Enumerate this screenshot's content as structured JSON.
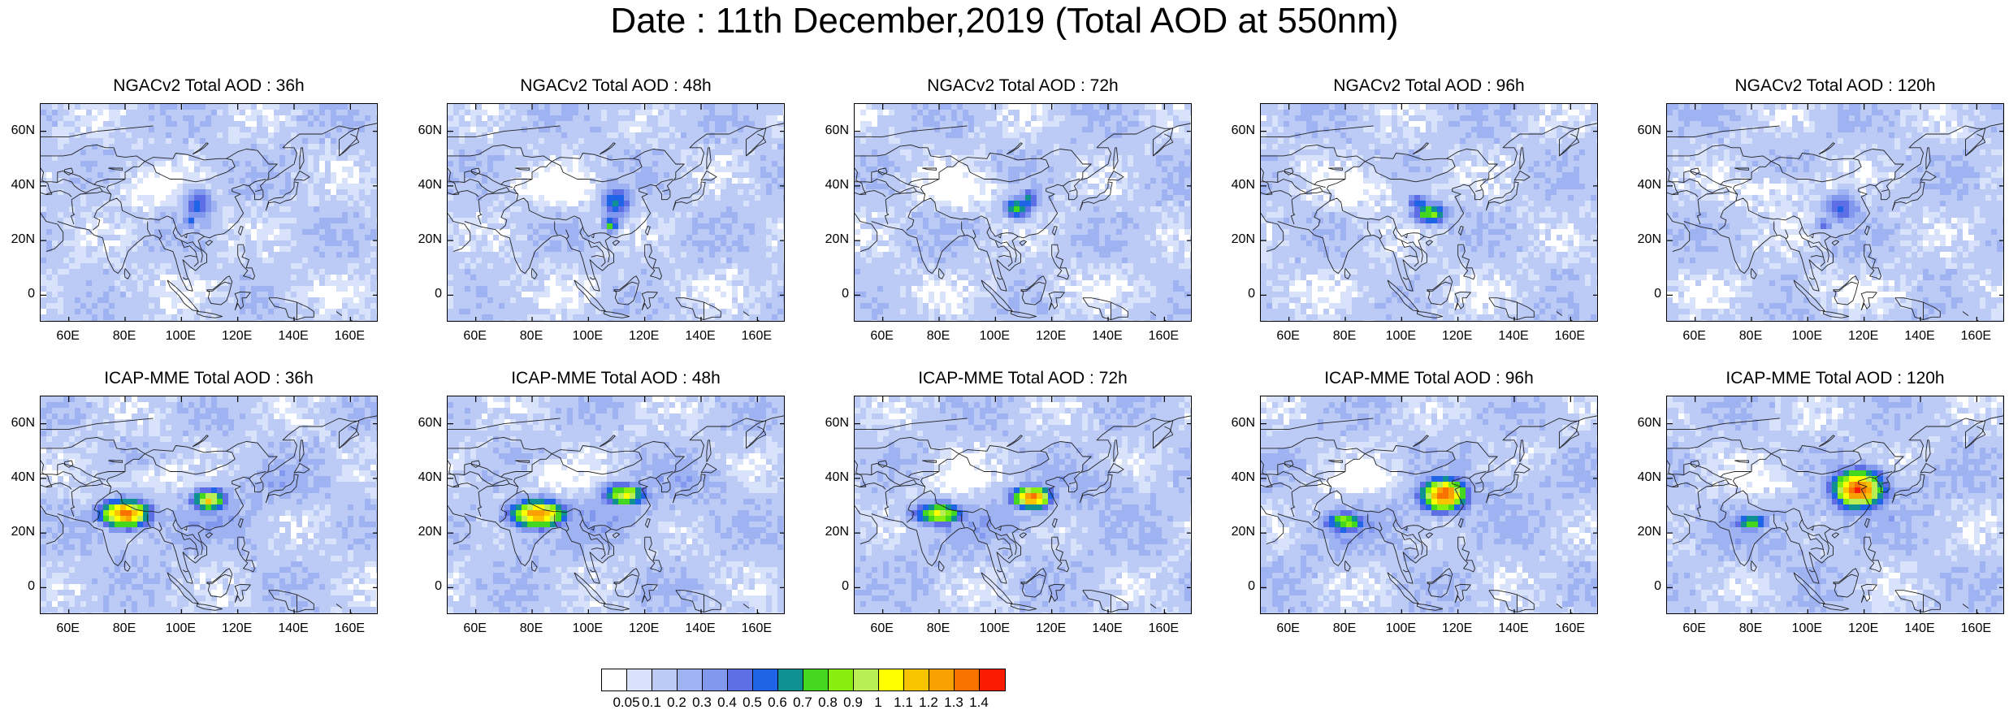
{
  "title": "Date : 11th December,2019 (Total AOD at 550nm)",
  "axis_ticks": {
    "x": [
      {
        "lon": 60,
        "label": "60E"
      },
      {
        "lon": 80,
        "label": "80E"
      },
      {
        "lon": 100,
        "label": "100E"
      },
      {
        "lon": 120,
        "label": "120E"
      },
      {
        "lon": 140,
        "label": "140E"
      },
      {
        "lon": 160,
        "label": "160E"
      }
    ],
    "y": [
      {
        "lat": 60,
        "label": "60N"
      },
      {
        "lat": 40,
        "label": "40N"
      },
      {
        "lat": 20,
        "label": "20N"
      },
      {
        "lat": 0,
        "label": "0"
      }
    ]
  },
  "map_extent": {
    "lon_min": 50,
    "lon_max": 170,
    "lat_min": -10,
    "lat_max": 70
  },
  "panels": [
    {
      "title": "NGACv2 Total AOD : 36h",
      "row": 0,
      "col": 0,
      "hotspots": [
        {
          "lon": 106,
          "lat": 33,
          "level": 0.55,
          "rx": 6,
          "ry": 6
        },
        {
          "lon": 103,
          "lat": 27,
          "level": 0.5,
          "rx": 3,
          "ry": 3
        }
      ]
    },
    {
      "title": "NGACv2 Total AOD : 48h",
      "row": 0,
      "col": 1,
      "hotspots": [
        {
          "lon": 110,
          "lat": 34,
          "level": 0.6,
          "rx": 6,
          "ry": 6
        },
        {
          "lon": 108,
          "lat": 26,
          "level": 0.75,
          "rx": 3,
          "ry": 3
        }
      ]
    },
    {
      "title": "NGACv2 Total AOD : 72h",
      "row": 0,
      "col": 2,
      "hotspots": [
        {
          "lon": 108,
          "lat": 32,
          "level": 0.75,
          "rx": 5,
          "ry": 4
        },
        {
          "lon": 112,
          "lat": 35,
          "level": 0.6,
          "rx": 4,
          "ry": 4
        }
      ]
    },
    {
      "title": "NGACv2 Total AOD : 96h",
      "row": 0,
      "col": 3,
      "hotspots": [
        {
          "lon": 110,
          "lat": 30,
          "level": 0.85,
          "rx": 6,
          "ry": 4
        },
        {
          "lon": 106,
          "lat": 34,
          "level": 0.6,
          "rx": 4,
          "ry": 3
        }
      ]
    },
    {
      "title": "NGACv2 Total AOD : 120h",
      "row": 0,
      "col": 4,
      "hotspots": [
        {
          "lon": 112,
          "lat": 32,
          "level": 0.5,
          "rx": 7,
          "ry": 6
        },
        {
          "lon": 106,
          "lat": 26,
          "level": 0.45,
          "rx": 3,
          "ry": 3
        }
      ]
    },
    {
      "title": "ICAP-MME Total AOD : 36h",
      "row": 1,
      "col": 0,
      "hotspots": [
        {
          "lon": 80,
          "lat": 27,
          "level": 1.35,
          "rx": 9,
          "ry": 5
        },
        {
          "lon": 110,
          "lat": 32,
          "level": 1.1,
          "rx": 6,
          "ry": 4
        }
      ]
    },
    {
      "title": "ICAP-MME Total AOD : 48h",
      "row": 1,
      "col": 1,
      "hotspots": [
        {
          "lon": 82,
          "lat": 27,
          "level": 1.3,
          "rx": 10,
          "ry": 5
        },
        {
          "lon": 113,
          "lat": 34,
          "level": 1.0,
          "rx": 8,
          "ry": 4
        }
      ]
    },
    {
      "title": "ICAP-MME Total AOD : 72h",
      "row": 1,
      "col": 2,
      "hotspots": [
        {
          "lon": 80,
          "lat": 27,
          "level": 1.0,
          "rx": 9,
          "ry": 4
        },
        {
          "lon": 113,
          "lat": 33,
          "level": 1.35,
          "rx": 7,
          "ry": 4
        }
      ]
    },
    {
      "title": "ICAP-MME Total AOD : 96h",
      "row": 1,
      "col": 3,
      "hotspots": [
        {
          "lon": 80,
          "lat": 24,
          "level": 0.85,
          "rx": 8,
          "ry": 4
        },
        {
          "lon": 115,
          "lat": 34,
          "level": 1.4,
          "rx": 8,
          "ry": 6
        }
      ]
    },
    {
      "title": "ICAP-MME Total AOD : 120h",
      "row": 1,
      "col": 4,
      "hotspots": [
        {
          "lon": 80,
          "lat": 24,
          "level": 0.8,
          "rx": 6,
          "ry": 3
        },
        {
          "lon": 118,
          "lat": 36,
          "level": 1.45,
          "rx": 9,
          "ry": 7
        }
      ]
    }
  ],
  "colorbar": {
    "labels": [
      "0.05",
      "0.1",
      "0.2",
      "0.3",
      "0.4",
      "0.5",
      "0.6",
      "0.7",
      "0.8",
      "0.9",
      "1",
      "1.1",
      "1.2",
      "1.3",
      "1.4"
    ],
    "colors": [
      "#ffffff",
      "#d9e2fb",
      "#bccbf6",
      "#9fb2f2",
      "#8198ee",
      "#5e6fe6",
      "#1f63e6",
      "#0f9191",
      "#44d71f",
      "#88ee10",
      "#b9ef55",
      "#ffff00",
      "#fbc400",
      "#f9a103",
      "#f97200",
      "#f91c00"
    ]
  }
}
